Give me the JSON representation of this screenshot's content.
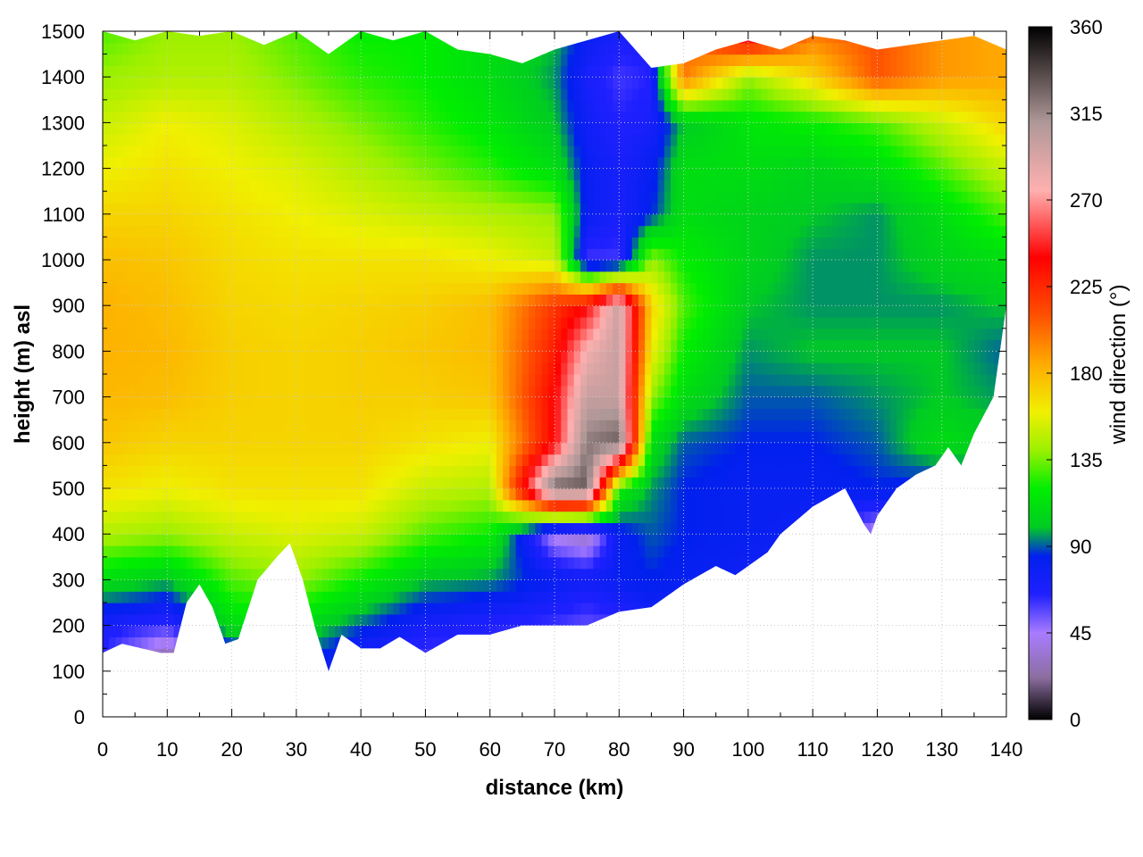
{
  "chart_data": {
    "type": "heatmap",
    "title": "",
    "xlabel": "distance (km)",
    "ylabel": "height (m) asl",
    "colorbar_label": "wind direction (°)",
    "xlim": [
      0,
      140
    ],
    "ylim": [
      0,
      1500
    ],
    "xticks": [
      0,
      10,
      20,
      30,
      40,
      50,
      60,
      70,
      80,
      90,
      100,
      110,
      120,
      130,
      140
    ],
    "yticks": [
      0,
      100,
      200,
      300,
      400,
      500,
      600,
      700,
      800,
      900,
      1000,
      1100,
      1200,
      1300,
      1400,
      1500
    ],
    "colorbar_range": [
      0,
      360
    ],
    "colorbar_ticks": [
      0,
      45,
      90,
      135,
      180,
      225,
      270,
      315,
      360
    ],
    "grid": true,
    "colormap": [
      {
        "value": 0,
        "color": "#000000"
      },
      {
        "value": 22,
        "color": "#8c6ea0"
      },
      {
        "value": 45,
        "color": "#a87cff"
      },
      {
        "value": 65,
        "color": "#2020ff"
      },
      {
        "value": 85,
        "color": "#0020ee"
      },
      {
        "value": 100,
        "color": "#00cc22"
      },
      {
        "value": 120,
        "color": "#00ee00"
      },
      {
        "value": 140,
        "color": "#9cf000"
      },
      {
        "value": 160,
        "color": "#f0f000"
      },
      {
        "value": 185,
        "color": "#ffaa00"
      },
      {
        "value": 210,
        "color": "#ff5000"
      },
      {
        "value": 240,
        "color": "#ff0000"
      },
      {
        "value": 275,
        "color": "#ffb0b0"
      },
      {
        "value": 310,
        "color": "#b09898"
      },
      {
        "value": 360,
        "color": "#000000"
      }
    ],
    "terrain_surface": {
      "x": [
        0,
        3,
        6,
        9,
        11,
        13,
        15,
        17,
        19,
        21,
        24,
        27,
        29,
        31,
        33,
        35,
        37,
        40,
        43,
        46,
        50,
        55,
        60,
        65,
        70,
        75,
        80,
        85,
        90,
        95,
        98,
        100,
        103,
        105,
        110,
        115,
        118,
        119,
        120,
        123,
        126,
        129,
        131,
        133,
        135,
        138,
        140
      ],
      "y": [
        140,
        160,
        150,
        140,
        140,
        250,
        290,
        240,
        160,
        170,
        300,
        350,
        380,
        300,
        190,
        100,
        180,
        150,
        150,
        175,
        140,
        180,
        180,
        200,
        200,
        200,
        230,
        240,
        290,
        330,
        310,
        330,
        360,
        400,
        460,
        500,
        420,
        400,
        440,
        500,
        530,
        550,
        590,
        550,
        620,
        700,
        900
      ]
    },
    "data_top": {
      "x": [
        0,
        5,
        10,
        15,
        20,
        25,
        30,
        35,
        40,
        45,
        50,
        55,
        60,
        65,
        70,
        75,
        80,
        85,
        90,
        95,
        100,
        105,
        110,
        115,
        120,
        125,
        130,
        135,
        140
      ],
      "y": [
        1500,
        1480,
        1500,
        1490,
        1500,
        1470,
        1500,
        1450,
        1500,
        1480,
        1500,
        1460,
        1450,
        1430,
        1460,
        1480,
        1500,
        1420,
        1430,
        1460,
        1480,
        1460,
        1490,
        1480,
        1460,
        1470,
        1480,
        1490,
        1460
      ]
    },
    "wind_direction_field": {
      "x": [
        0,
        10,
        20,
        30,
        40,
        50,
        60,
        70,
        75,
        80,
        85,
        90,
        100,
        110,
        120,
        130,
        140
      ],
      "heights": [
        100,
        200,
        300,
        400,
        500,
        600,
        700,
        800,
        900,
        1000,
        1100,
        1200,
        1300,
        1400,
        1500
      ],
      "values": [
        [
          60,
          10,
          60,
          90,
          55,
          55,
          60,
          50,
          50,
          45,
          45,
          40,
          40,
          40,
          40,
          40,
          40
        ],
        [
          70,
          60,
          110,
          110,
          90,
          70,
          65,
          60,
          55,
          60,
          70,
          65,
          60,
          55,
          60,
          60,
          60
        ],
        [
          110,
          100,
          130,
          140,
          120,
          100,
          95,
          80,
          75,
          80,
          85,
          80,
          75,
          70,
          70,
          70,
          70
        ],
        [
          145,
          140,
          150,
          155,
          150,
          130,
          120,
          40,
          30,
          80,
          90,
          85,
          80,
          75,
          40,
          80,
          80
        ],
        [
          165,
          160,
          165,
          165,
          165,
          150,
          145,
          330,
          330,
          120,
          95,
          85,
          80,
          80,
          85,
          80,
          90
        ],
        [
          175,
          170,
          170,
          170,
          170,
          165,
          160,
          240,
          320,
          330,
          110,
          90,
          85,
          85,
          90,
          110,
          100
        ],
        [
          180,
          178,
          172,
          170,
          172,
          172,
          175,
          240,
          300,
          300,
          140,
          110,
          90,
          90,
          95,
          100,
          95
        ],
        [
          182,
          180,
          172,
          170,
          172,
          175,
          178,
          230,
          280,
          300,
          160,
          120,
          95,
          100,
          100,
          100,
          90
        ],
        [
          182,
          178,
          170,
          168,
          170,
          172,
          178,
          220,
          240,
          300,
          170,
          130,
          100,
          95,
          95,
          95,
          100
        ],
        [
          178,
          175,
          168,
          165,
          165,
          165,
          160,
          150,
          60,
          60,
          140,
          120,
          105,
          95,
          95,
          105,
          110
        ],
        [
          170,
          170,
          165,
          160,
          155,
          150,
          145,
          140,
          80,
          70,
          85,
          110,
          105,
          100,
          95,
          110,
          130
        ],
        [
          160,
          165,
          160,
          155,
          145,
          135,
          125,
          110,
          80,
          70,
          80,
          110,
          110,
          105,
          110,
          130,
          150
        ],
        [
          150,
          160,
          155,
          145,
          135,
          125,
          115,
          100,
          75,
          65,
          70,
          100,
          115,
          120,
          130,
          150,
          170
        ],
        [
          140,
          145,
          145,
          135,
          125,
          120,
          110,
          95,
          70,
          60,
          65,
          200,
          140,
          170,
          210,
          190,
          185
        ],
        [
          130,
          140,
          140,
          130,
          120,
          120,
          110,
          100,
          80,
          70,
          70,
          200,
          260,
          200,
          210,
          190,
          185
        ]
      ]
    }
  }
}
